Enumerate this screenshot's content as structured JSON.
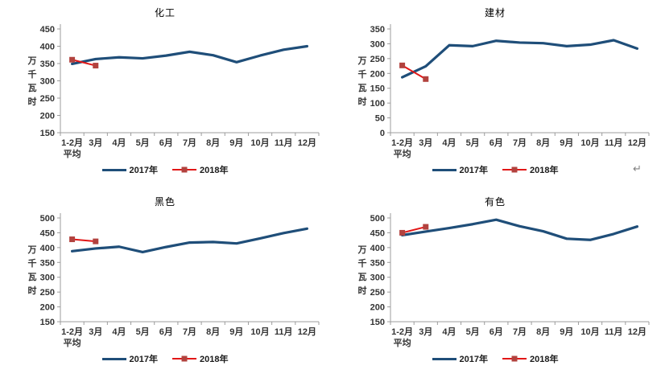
{
  "page": {
    "background": "#ffffff",
    "return_mark": "↵"
  },
  "colors": {
    "series_2017": "#1F4E79",
    "series_2018": "#E21717",
    "marker_2018": "#B2423E",
    "axis": "#9C9C9C",
    "tick_text": "#333333",
    "title_text": "#000000",
    "return_mark": "#808080"
  },
  "chart_data": [
    {
      "type": "line",
      "title": "化工",
      "ylabel": "万千瓦时",
      "ylim": [
        150,
        450
      ],
      "ytick_step": 50,
      "grid": false,
      "legend_position": "bottom",
      "categories": [
        "1-2月",
        "3月",
        "4月",
        "5月",
        "6月",
        "7月",
        "8月",
        "9月",
        "10月",
        "11月",
        "12月"
      ],
      "first_category_line2": "平均",
      "series": [
        {
          "name": "2017年",
          "key": "2017",
          "color": "#1F4E79",
          "values": [
            349,
            363,
            368,
            365,
            373,
            384,
            374,
            354,
            373,
            390,
            400
          ]
        },
        {
          "name": "2018年",
          "key": "2018",
          "color": "#E21717",
          "marker": "square",
          "marker_color": "#B2423E",
          "values": [
            361,
            344
          ]
        }
      ]
    },
    {
      "type": "line",
      "title": "建材",
      "ylabel": "万千瓦时",
      "ylim": [
        0,
        350
      ],
      "ytick_step": 50,
      "grid": false,
      "legend_position": "bottom",
      "categories": [
        "1-2月",
        "3月",
        "4月",
        "5月",
        "6月",
        "7月",
        "8月",
        "9月",
        "10月",
        "11月",
        "12月"
      ],
      "first_category_line2": "平均",
      "series": [
        {
          "name": "2017年",
          "key": "2017",
          "color": "#1F4E79",
          "values": [
            187,
            224,
            295,
            292,
            310,
            304,
            302,
            292,
            297,
            312,
            284
          ]
        },
        {
          "name": "2018年",
          "key": "2018",
          "color": "#E21717",
          "marker": "square",
          "marker_color": "#B2423E",
          "values": [
            227,
            181
          ]
        }
      ]
    },
    {
      "type": "line",
      "title": "黑色",
      "ylabel": "万千瓦时",
      "ylim": [
        150,
        500
      ],
      "ytick_step": 50,
      "grid": false,
      "legend_position": "bottom",
      "categories": [
        "1-2月",
        "3月",
        "4月",
        "5月",
        "6月",
        "7月",
        "8月",
        "9月",
        "10月",
        "11月",
        "12月"
      ],
      "first_category_line2": "平均",
      "series": [
        {
          "name": "2017年",
          "key": "2017",
          "color": "#1F4E79",
          "values": [
            388,
            397,
            403,
            385,
            402,
            417,
            419,
            414,
            431,
            449,
            464
          ]
        },
        {
          "name": "2018年",
          "key": "2018",
          "color": "#E21717",
          "marker": "square",
          "marker_color": "#B2423E",
          "values": [
            428,
            421
          ]
        }
      ]
    },
    {
      "type": "line",
      "title": "有色",
      "ylabel": "万千瓦时",
      "ylim": [
        150,
        500
      ],
      "ytick_step": 50,
      "grid": false,
      "legend_position": "bottom",
      "categories": [
        "1-2月",
        "3月",
        "4月",
        "5月",
        "6月",
        "7月",
        "8月",
        "9月",
        "10月",
        "11月",
        "12月"
      ],
      "first_category_line2": "平均",
      "series": [
        {
          "name": "2017年",
          "key": "2017",
          "color": "#1F4E79",
          "values": [
            442,
            454,
            466,
            479,
            494,
            472,
            455,
            430,
            426,
            446,
            471
          ]
        },
        {
          "name": "2018年",
          "key": "2018",
          "color": "#E21717",
          "marker": "square",
          "marker_color": "#B2423E",
          "values": [
            450,
            470
          ]
        }
      ]
    }
  ]
}
